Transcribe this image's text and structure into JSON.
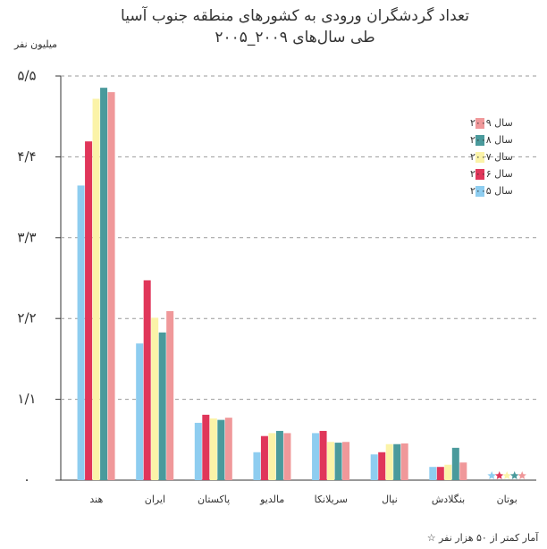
{
  "chart_data": {
    "type": "bar",
    "title": "تعداد گردشگران ورودی به کشورهای منطقه جنوب آسیا",
    "subtitle": "طی سال‌های ۲۰۰۹_۲۰۰۵",
    "y_label": "میلیون نفر",
    "note": "آمار کمتر از ۵۰ هزار نفر ☆",
    "categories": [
      "هند",
      "ایران",
      "پاکستان",
      "مالدیو",
      "سریلانکا",
      "نپال",
      "بنگلادش",
      "بوتان"
    ],
    "starred": [
      false,
      false,
      false,
      false,
      false,
      false,
      false,
      true
    ],
    "series": [
      {
        "name": "سال ۲۰۰۵",
        "color": "#8ecdf0",
        "values": [
          4.01,
          1.86,
          0.78,
          0.38,
          0.64,
          0.35,
          0.18,
          0.02
        ]
      },
      {
        "name": "سال ۲۰۰۶",
        "color": "#e0365a",
        "values": [
          4.61,
          2.72,
          0.89,
          0.6,
          0.67,
          0.38,
          0.18,
          0.02
        ]
      },
      {
        "name": "سال ۲۰۰۷",
        "color": "#fbf3a8",
        "values": [
          5.19,
          2.21,
          0.84,
          0.64,
          0.52,
          0.49,
          0.21,
          0.02
        ]
      },
      {
        "name": "سال ۲۰۰۸",
        "color": "#4a9a9c",
        "values": [
          5.34,
          2.01,
          0.82,
          0.67,
          0.51,
          0.49,
          0.44,
          0.02
        ]
      },
      {
        "name": "سال ۲۰۰۹",
        "color": "#f0989a",
        "values": [
          5.28,
          2.3,
          0.85,
          0.64,
          0.52,
          0.5,
          0.24,
          0.02
        ]
      }
    ],
    "ylim": [
      0,
      5.5
    ],
    "yticks": [
      {
        "value": 0,
        "label": "۰"
      },
      {
        "value": 1.1,
        "label": "۱/۱"
      },
      {
        "value": 2.2,
        "label": "۲/۲"
      },
      {
        "value": 3.3,
        "label": "۳/۳"
      },
      {
        "value": 4.4,
        "label": "۴/۴"
      },
      {
        "value": 5.5,
        "label": "۵/۵"
      }
    ],
    "grid": true,
    "legend": "upper right"
  }
}
